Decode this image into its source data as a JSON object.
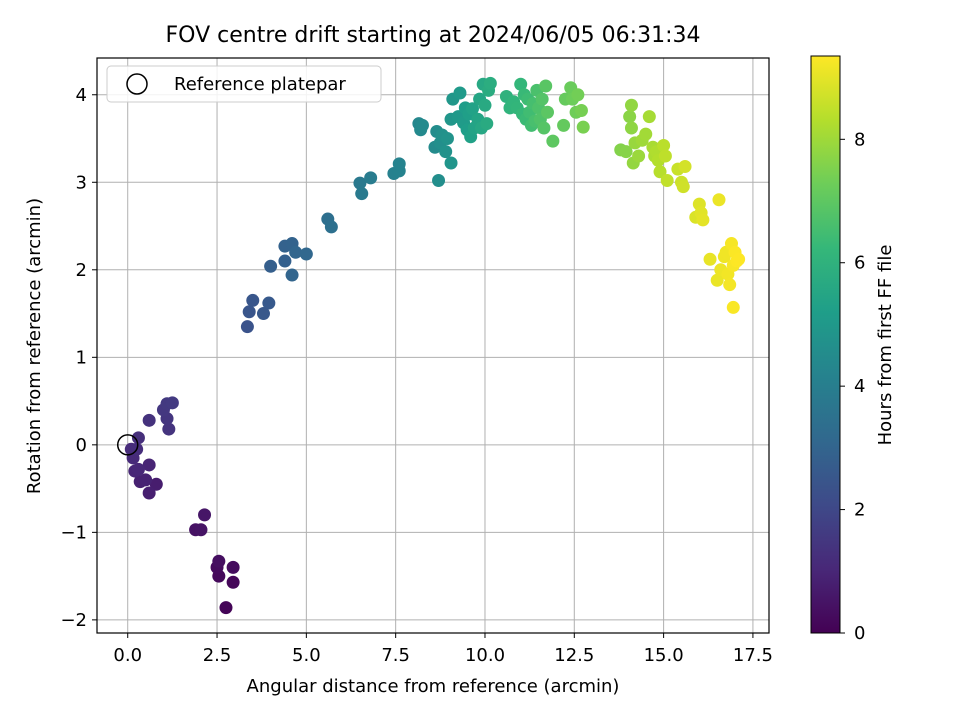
{
  "chart_data": {
    "type": "scatter",
    "title": "FOV centre drift starting at 2024/06/05 06:31:34",
    "xlabel": "Angular distance from reference (arcmin)",
    "ylabel": "Rotation from reference (arcmin)",
    "xlim": [
      -0.86,
      17.95
    ],
    "ylim": [
      -2.15,
      4.42
    ],
    "xticks": [
      0.0,
      2.5,
      5.0,
      7.5,
      10.0,
      12.5,
      15.0,
      17.5
    ],
    "xtick_labels": [
      "0.0",
      "2.5",
      "5.0",
      "7.5",
      "10.0",
      "12.5",
      "15.0",
      "17.5"
    ],
    "yticks": [
      -2,
      -1,
      0,
      1,
      2,
      3,
      4
    ],
    "ytick_labels": [
      "−2",
      "−1",
      "0",
      "1",
      "2",
      "3",
      "4"
    ],
    "grid": true,
    "legend": {
      "placement": "upper-left",
      "entries": [
        "Reference platepar"
      ]
    },
    "reference_point": {
      "x": 0.0,
      "y": 0.0
    },
    "colorbar": {
      "label": "Hours from first FF file",
      "colormap": "viridis",
      "range": [
        0,
        9.35
      ],
      "ticks": [
        0,
        2,
        4,
        6,
        8
      ],
      "tick_labels": [
        "0",
        "2",
        "4",
        "6",
        "8"
      ]
    },
    "points": [
      [
        2.75,
        -1.86,
        0.1
      ],
      [
        2.95,
        -1.57,
        0.15
      ],
      [
        2.55,
        -1.5,
        0.2
      ],
      [
        2.5,
        -1.4,
        0.25
      ],
      [
        2.95,
        -1.4,
        0.3
      ],
      [
        2.55,
        -1.33,
        0.35
      ],
      [
        1.9,
        -0.97,
        0.45
      ],
      [
        2.05,
        -0.97,
        0.5
      ],
      [
        2.15,
        -0.8,
        0.55
      ],
      [
        0.8,
        -0.45,
        0.75
      ],
      [
        0.6,
        -0.55,
        0.8
      ],
      [
        0.35,
        -0.42,
        0.85
      ],
      [
        0.5,
        -0.4,
        0.9
      ],
      [
        0.6,
        -0.23,
        0.95
      ],
      [
        0.2,
        -0.3,
        1.0
      ],
      [
        0.3,
        -0.28,
        1.05
      ],
      [
        0.15,
        -0.15,
        1.1
      ],
      [
        0.1,
        -0.05,
        1.15
      ],
      [
        0.25,
        -0.05,
        1.2
      ],
      [
        0.3,
        0.08,
        1.25
      ],
      [
        0.6,
        0.28,
        1.35
      ],
      [
        1.15,
        0.18,
        1.4
      ],
      [
        1.1,
        0.3,
        1.45
      ],
      [
        1.0,
        0.4,
        1.5
      ],
      [
        1.1,
        0.47,
        1.55
      ],
      [
        1.25,
        0.48,
        1.6
      ],
      [
        3.35,
        1.35,
        2.4
      ],
      [
        3.4,
        1.52,
        2.45
      ],
      [
        3.5,
        1.65,
        2.5
      ],
      [
        3.8,
        1.5,
        2.55
      ],
      [
        3.95,
        1.62,
        2.6
      ],
      [
        4.0,
        2.04,
        2.8
      ],
      [
        4.4,
        2.1,
        2.85
      ],
      [
        4.4,
        2.27,
        2.9
      ],
      [
        4.6,
        2.3,
        2.95
      ],
      [
        4.6,
        1.94,
        3.0
      ],
      [
        4.7,
        2.2,
        3.05
      ],
      [
        5.0,
        2.18,
        3.1
      ],
      [
        5.6,
        2.58,
        3.4
      ],
      [
        5.7,
        2.49,
        3.45
      ],
      [
        6.5,
        2.99,
        3.8
      ],
      [
        6.55,
        2.87,
        3.85
      ],
      [
        6.8,
        3.05,
        3.9
      ],
      [
        7.45,
        3.1,
        4.1
      ],
      [
        7.6,
        3.13,
        4.15
      ],
      [
        7.6,
        3.21,
        4.2
      ],
      [
        8.15,
        3.67,
        4.35
      ],
      [
        8.2,
        3.6,
        4.4
      ],
      [
        8.25,
        3.65,
        4.45
      ],
      [
        8.6,
        3.4,
        4.5
      ],
      [
        8.65,
        3.58,
        4.55
      ],
      [
        8.7,
        3.02,
        4.6
      ],
      [
        8.75,
        3.45,
        4.65
      ],
      [
        8.8,
        3.54,
        4.7
      ],
      [
        8.9,
        3.35,
        4.75
      ],
      [
        8.95,
        3.5,
        4.8
      ],
      [
        9.05,
        3.22,
        4.85
      ],
      [
        9.05,
        3.72,
        4.9
      ],
      [
        9.1,
        3.95,
        4.95
      ],
      [
        9.25,
        3.75,
        5.0
      ],
      [
        9.3,
        4.02,
        5.05
      ],
      [
        9.4,
        3.68,
        5.1
      ],
      [
        9.45,
        3.85,
        5.15
      ],
      [
        9.5,
        3.6,
        5.2
      ],
      [
        9.55,
        3.78,
        5.25
      ],
      [
        9.6,
        3.52,
        5.3
      ],
      [
        9.65,
        3.84,
        5.35
      ],
      [
        9.7,
        3.62,
        5.4
      ],
      [
        9.8,
        3.72,
        5.45
      ],
      [
        9.85,
        3.95,
        5.5
      ],
      [
        9.9,
        3.62,
        5.55
      ],
      [
        9.95,
        4.12,
        5.6
      ],
      [
        10.0,
        3.88,
        5.65
      ],
      [
        10.05,
        3.67,
        5.7
      ],
      [
        10.1,
        4.05,
        5.75
      ],
      [
        10.15,
        4.13,
        5.8
      ],
      [
        10.6,
        3.98,
        6.0
      ],
      [
        10.7,
        3.85,
        6.05
      ],
      [
        10.8,
        3.92,
        6.1
      ],
      [
        10.9,
        3.85,
        6.15
      ],
      [
        11.0,
        4.12,
        6.2
      ],
      [
        11.05,
        3.78,
        6.25
      ],
      [
        11.1,
        4.0,
        6.3
      ],
      [
        11.15,
        3.72,
        6.35
      ],
      [
        11.2,
        3.95,
        6.4
      ],
      [
        11.25,
        3.8,
        6.45
      ],
      [
        11.3,
        3.65,
        6.5
      ],
      [
        11.35,
        3.9,
        6.55
      ],
      [
        11.4,
        3.7,
        6.6
      ],
      [
        11.45,
        4.05,
        6.65
      ],
      [
        11.5,
        3.85,
        6.7
      ],
      [
        11.55,
        3.72,
        6.75
      ],
      [
        11.6,
        3.95,
        6.8
      ],
      [
        11.65,
        3.62,
        6.85
      ],
      [
        11.7,
        4.1,
        6.9
      ],
      [
        11.75,
        3.8,
        6.95
      ],
      [
        11.9,
        3.47,
        7.0
      ],
      [
        12.2,
        3.65,
        7.1
      ],
      [
        12.25,
        3.95,
        7.15
      ],
      [
        12.4,
        4.08,
        7.2
      ],
      [
        12.45,
        3.95,
        7.25
      ],
      [
        12.55,
        3.8,
        7.3
      ],
      [
        12.6,
        4.0,
        7.35
      ],
      [
        12.7,
        3.82,
        7.4
      ],
      [
        12.75,
        3.63,
        7.45
      ],
      [
        13.8,
        3.37,
        7.6
      ],
      [
        13.95,
        3.35,
        7.65
      ],
      [
        14.05,
        3.75,
        7.7
      ],
      [
        14.1,
        3.62,
        7.75
      ],
      [
        14.1,
        3.88,
        7.8
      ],
      [
        14.15,
        3.22,
        7.85
      ],
      [
        14.2,
        3.45,
        7.9
      ],
      [
        14.3,
        3.3,
        7.95
      ],
      [
        14.4,
        3.48,
        8.0
      ],
      [
        14.5,
        3.55,
        8.05
      ],
      [
        14.6,
        3.75,
        8.1
      ],
      [
        14.7,
        3.4,
        8.15
      ],
      [
        14.75,
        3.3,
        8.2
      ],
      [
        14.8,
        3.35,
        8.25
      ],
      [
        14.85,
        3.25,
        8.3
      ],
      [
        14.9,
        3.12,
        8.35
      ],
      [
        15.0,
        3.42,
        8.4
      ],
      [
        15.05,
        3.3,
        8.45
      ],
      [
        15.1,
        3.02,
        8.5
      ],
      [
        15.4,
        3.15,
        8.6
      ],
      [
        15.5,
        3.0,
        8.65
      ],
      [
        15.55,
        2.95,
        8.7
      ],
      [
        15.6,
        3.18,
        8.75
      ],
      [
        15.9,
        2.6,
        8.85
      ],
      [
        16.0,
        2.75,
        8.9
      ],
      [
        16.05,
        2.65,
        8.95
      ],
      [
        16.1,
        2.57,
        9.0
      ],
      [
        16.3,
        2.12,
        9.05
      ],
      [
        16.5,
        1.88,
        9.08
      ],
      [
        16.55,
        2.8,
        9.1
      ],
      [
        16.6,
        2.0,
        9.12
      ],
      [
        16.7,
        2.15,
        9.15
      ],
      [
        16.75,
        2.2,
        9.17
      ],
      [
        16.8,
        1.95,
        9.2
      ],
      [
        16.85,
        1.83,
        9.22
      ],
      [
        16.9,
        2.3,
        9.25
      ],
      [
        16.95,
        2.05,
        9.27
      ],
      [
        16.95,
        1.57,
        9.3
      ],
      [
        17.0,
        2.2,
        9.32
      ],
      [
        17.05,
        2.1,
        9.34
      ],
      [
        17.1,
        2.12,
        9.35
      ]
    ]
  }
}
